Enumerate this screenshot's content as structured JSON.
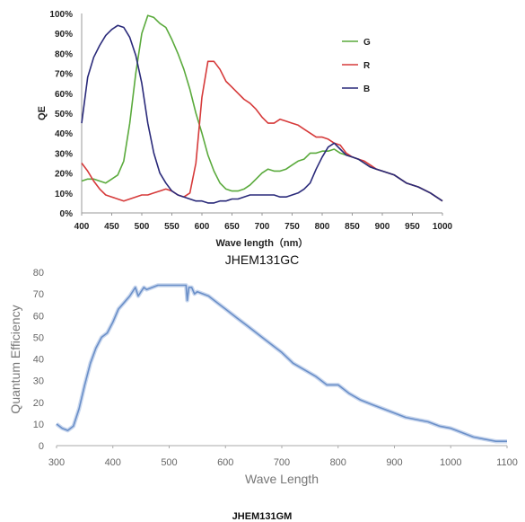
{
  "chart_data": [
    {
      "type": "line",
      "title": "JHEM131GC",
      "xlabel": "Wave length（nm）",
      "ylabel": "QE",
      "xlim": [
        400,
        1000
      ],
      "ylim": [
        0,
        100
      ],
      "x_ticks": [
        "400",
        "450",
        "500",
        "550",
        "600",
        "650",
        "700",
        "750",
        "800",
        "850",
        "900",
        "950",
        "1000"
      ],
      "y_ticks": [
        "0%",
        "10%",
        "20%",
        "30%",
        "40%",
        "50%",
        "60%",
        "70%",
        "80%",
        "90%",
        "100%"
      ],
      "legend": "top-right",
      "grid": false,
      "series": [
        {
          "name": "G",
          "color": "#5aaa3c",
          "x": [
            400,
            410,
            420,
            430,
            440,
            450,
            460,
            470,
            480,
            490,
            500,
            510,
            520,
            530,
            540,
            550,
            560,
            570,
            580,
            590,
            600,
            610,
            620,
            630,
            640,
            650,
            660,
            670,
            680,
            690,
            700,
            710,
            720,
            730,
            740,
            750,
            760,
            770,
            780,
            790,
            800,
            810,
            820,
            830,
            840,
            850,
            860,
            870,
            880,
            890,
            900,
            920,
            940,
            960,
            980,
            1000
          ],
          "y": [
            16,
            17,
            17,
            16,
            15,
            17,
            19,
            26,
            45,
            70,
            90,
            99,
            98,
            95,
            93,
            87,
            80,
            72,
            62,
            50,
            40,
            29,
            21,
            15,
            12,
            11,
            11,
            12,
            14,
            17,
            20,
            22,
            21,
            21,
            22,
            24,
            26,
            27,
            30,
            30,
            31,
            31,
            32,
            30,
            29,
            28,
            27,
            25,
            23,
            22,
            21,
            19,
            15,
            13,
            10,
            6
          ]
        },
        {
          "name": "R",
          "color": "#d63a3a",
          "x": [
            400,
            410,
            420,
            430,
            440,
            450,
            460,
            470,
            480,
            490,
            500,
            510,
            520,
            530,
            540,
            550,
            560,
            570,
            580,
            590,
            600,
            610,
            620,
            630,
            640,
            650,
            660,
            670,
            680,
            690,
            700,
            710,
            720,
            730,
            740,
            750,
            760,
            770,
            780,
            790,
            800,
            810,
            820,
            830,
            840,
            850,
            860,
            870,
            880,
            890,
            900,
            920,
            940,
            960,
            980,
            1000
          ],
          "y": [
            25,
            21,
            16,
            12,
            9,
            8,
            7,
            6,
            7,
            8,
            9,
            9,
            10,
            11,
            12,
            11,
            9,
            8,
            10,
            25,
            58,
            76,
            76,
            72,
            66,
            63,
            60,
            57,
            55,
            52,
            48,
            45,
            45,
            47,
            46,
            45,
            44,
            42,
            40,
            38,
            38,
            37,
            35,
            34,
            30,
            28,
            27,
            26,
            24,
            22,
            21,
            19,
            15,
            13,
            10,
            6
          ]
        },
        {
          "name": "B",
          "color": "#2a2a7a",
          "x": [
            400,
            410,
            420,
            430,
            440,
            450,
            460,
            470,
            480,
            490,
            500,
            510,
            520,
            530,
            540,
            550,
            560,
            570,
            580,
            590,
            600,
            610,
            620,
            630,
            640,
            650,
            660,
            670,
            680,
            690,
            700,
            710,
            720,
            730,
            740,
            750,
            760,
            770,
            780,
            790,
            800,
            810,
            820,
            830,
            840,
            850,
            860,
            870,
            880,
            890,
            900,
            920,
            940,
            960,
            980,
            1000
          ],
          "y": [
            45,
            68,
            78,
            84,
            89,
            92,
            94,
            93,
            88,
            79,
            65,
            45,
            30,
            20,
            15,
            11,
            9,
            8,
            7,
            6,
            6,
            5,
            5,
            6,
            6,
            7,
            7,
            8,
            9,
            9,
            9,
            9,
            9,
            8,
            8,
            9,
            10,
            12,
            15,
            22,
            28,
            33,
            35,
            32,
            29,
            28,
            27,
            25,
            23,
            22,
            21,
            19,
            15,
            13,
            10,
            6
          ]
        }
      ]
    },
    {
      "type": "line",
      "title": "JHEM131GM",
      "xlabel": "Wave Length",
      "ylabel": "Quantum Efficiency",
      "xlim": [
        300,
        1100
      ],
      "ylim": [
        0,
        80
      ],
      "x_ticks": [
        "300",
        "400",
        "500",
        "600",
        "700",
        "800",
        "900",
        "1000",
        "1100"
      ],
      "y_ticks": [
        "0",
        "10",
        "20",
        "30",
        "40",
        "50",
        "60",
        "70",
        "80"
      ],
      "grid": false,
      "series": [
        {
          "color": "#6a8fc8",
          "x": [
            300,
            310,
            320,
            330,
            340,
            350,
            360,
            370,
            380,
            390,
            400,
            410,
            420,
            430,
            440,
            445,
            450,
            455,
            460,
            470,
            480,
            490,
            500,
            510,
            520,
            530,
            532,
            535,
            540,
            545,
            550,
            560,
            570,
            580,
            590,
            600,
            620,
            640,
            660,
            680,
            700,
            720,
            740,
            760,
            780,
            800,
            820,
            840,
            860,
            880,
            900,
            920,
            940,
            960,
            980,
            1000,
            1020,
            1040,
            1060,
            1080,
            1100
          ],
          "y": [
            10,
            8,
            7,
            9,
            17,
            28,
            38,
            45,
            50,
            52,
            57,
            63,
            66,
            69,
            73,
            69,
            71,
            73,
            72,
            73,
            74,
            74,
            74,
            74,
            74,
            74,
            67,
            73,
            73,
            70,
            71,
            70,
            69,
            67,
            65,
            63,
            59,
            55,
            51,
            47,
            43,
            38,
            35,
            32,
            28,
            28,
            24,
            21,
            19,
            17,
            15,
            13,
            12,
            11,
            9,
            8,
            6,
            4,
            3,
            2,
            2
          ]
        }
      ]
    }
  ]
}
